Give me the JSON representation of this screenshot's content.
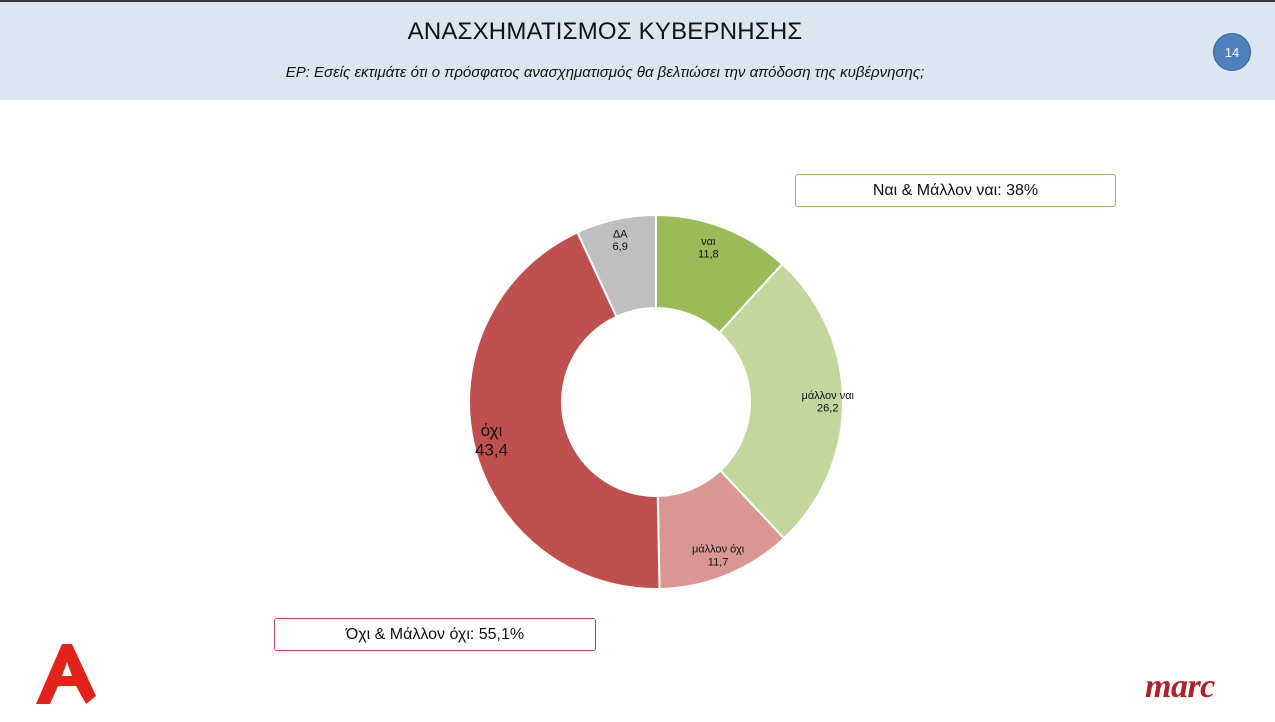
{
  "header": {
    "title": "ΑΝΑΣΧΗΜΑΤΙΣΜΟΣ ΚΥΒΕΡΝΗΣΗΣ",
    "question": "ΕΡ: Εσείς εκτιμάτε ότι ο πρόσφατος ανασχηματισμός θα βελτιώσει την απόδοση της κυβέρνησης;",
    "page_number": "14"
  },
  "summaries": {
    "yes_total": "Ναι & Μάλλον ναι: 38%",
    "no_total": "Όχι & Μάλλον όχι: 55,1%"
  },
  "logos": {
    "left_brand": "Α",
    "right_brand": "marc"
  },
  "colors": {
    "header_bg": "#dce6f1",
    "yes": "#9bbb59",
    "rather_yes": "#c3d69b",
    "rather_no": "#d99694",
    "no": "#c0504d",
    "dk": "#bfbfbf"
  },
  "chart_data": {
    "type": "pie",
    "subtype": "donut",
    "start_angle_deg": 0,
    "direction": "clockwise",
    "slices": [
      {
        "label": "ναι",
        "value": 11.8,
        "display": "11,8",
        "color": "#9bbb59"
      },
      {
        "label": "μάλλον ναι",
        "value": 26.2,
        "display": "26,2",
        "color": "#c3d69b"
      },
      {
        "label": "μάλλον όχι",
        "value": 11.7,
        "display": "11,7",
        "color": "#d99694"
      },
      {
        "label": "όχι",
        "value": 43.4,
        "display": "43,4",
        "color": "#c0504d"
      },
      {
        "label": "ΔΑ",
        "value": 6.9,
        "display": "6,9",
        "color": "#bfbfbf"
      }
    ]
  }
}
